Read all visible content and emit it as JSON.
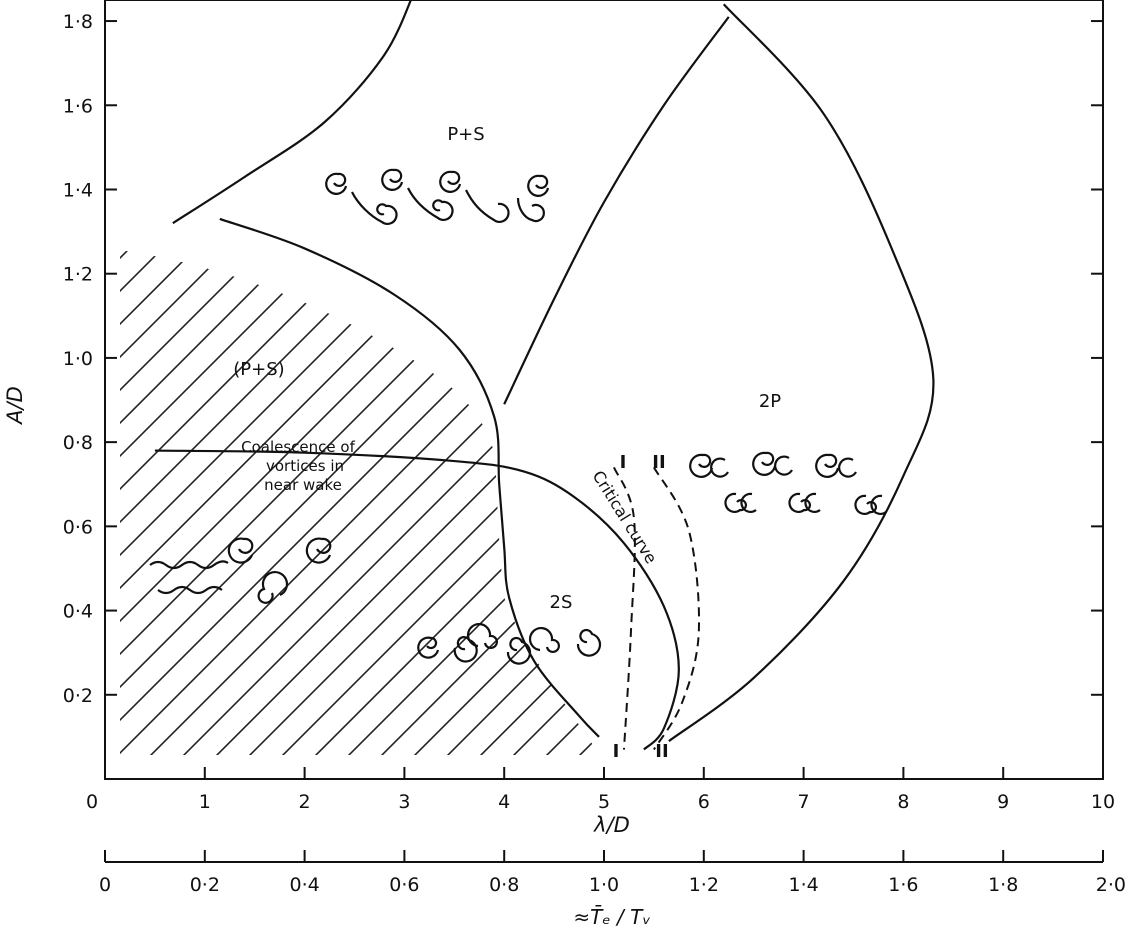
{
  "chart_data": {
    "type": "line",
    "title": "",
    "xlabel": "λ/D",
    "ylabel": "A/D",
    "xlim": [
      0,
      10
    ],
    "ylim": [
      0,
      1.85
    ],
    "x_ticks": [
      "0",
      "1",
      "2",
      "3",
      "4",
      "5",
      "6",
      "7",
      "8",
      "9",
      "10"
    ],
    "y_ticks": [
      "0·2",
      "0·4",
      "0·6",
      "0·8",
      "1·0",
      "1·2",
      "1·4",
      "1·6",
      "1·8"
    ],
    "secondary_x_axis": {
      "label": "≈T̄ₑ / Tᵥ",
      "ticks": [
        "0",
        "0·2",
        "0·4",
        "0·6",
        "0·8",
        "1·0",
        "1·2",
        "1·4",
        "1·6",
        "1·8",
        "2·0"
      ]
    },
    "regions": [
      {
        "name": "P+S",
        "label": "P+S",
        "center": [
          3.6,
          1.57
        ]
      },
      {
        "name": "(P+S)",
        "label": "(P+S)",
        "center": [
          2.2,
          1.0
        ]
      },
      {
        "name": "2P",
        "label": "2P",
        "center": [
          7.5,
          0.92
        ]
      },
      {
        "name": "2S",
        "label": "2S",
        "center": [
          5.0,
          0.39
        ]
      }
    ],
    "series": [
      {
        "values": [
          [
            0.68,
            1.32
          ],
          [
            1.4,
            1.43
          ],
          [
            2.2,
            1.56
          ],
          [
            2.8,
            1.72
          ],
          [
            3.1,
            1.87
          ]
        ]
      },
      {
        "values": [
          [
            1.15,
            1.33
          ],
          [
            2.0,
            1.26
          ],
          [
            2.9,
            1.15
          ],
          [
            3.55,
            1.02
          ],
          [
            3.9,
            0.86
          ],
          [
            3.95,
            0.7
          ],
          [
            4.0,
            0.55
          ],
          [
            4.05,
            0.43
          ],
          [
            4.3,
            0.28
          ],
          [
            4.75,
            0.15
          ],
          [
            4.95,
            0.1
          ]
        ]
      },
      {
        "values": [
          [
            0.5,
            0.78
          ],
          [
            2.0,
            0.775
          ],
          [
            3.5,
            0.755
          ],
          [
            4.2,
            0.73
          ],
          [
            4.7,
            0.67
          ],
          [
            5.2,
            0.56
          ],
          [
            5.6,
            0.41
          ],
          [
            5.75,
            0.26
          ],
          [
            5.6,
            0.12
          ],
          [
            5.4,
            0.07
          ]
        ]
      },
      {
        "values": [
          [
            4.0,
            0.89
          ],
          [
            4.5,
            1.14
          ],
          [
            5.0,
            1.37
          ],
          [
            5.6,
            1.6
          ],
          [
            6.25,
            1.81
          ]
        ]
      },
      {
        "values": [
          [
            6.2,
            1.84
          ],
          [
            7.2,
            1.58
          ],
          [
            7.9,
            1.25
          ],
          [
            8.3,
            0.95
          ],
          [
            8.0,
            0.72
          ],
          [
            7.4,
            0.47
          ],
          [
            6.5,
            0.24
          ],
          [
            5.65,
            0.09
          ]
        ]
      }
    ],
    "dashed_curves": [
      {
        "marker": "I",
        "values": [
          [
            5.1,
            0.74
          ],
          [
            5.3,
            0.62
          ],
          [
            5.27,
            0.35
          ],
          [
            5.2,
            0.07
          ]
        ]
      },
      {
        "marker": "II",
        "values": [
          [
            5.5,
            0.74
          ],
          [
            5.85,
            0.59
          ],
          [
            5.95,
            0.35
          ],
          [
            5.78,
            0.18
          ],
          [
            5.5,
            0.07
          ]
        ]
      }
    ],
    "annotations": [
      {
        "text": "Coalescence of",
        "at": [
          2.5,
          0.83
        ]
      },
      {
        "text": "vortices in",
        "at": [
          2.4,
          0.77
        ]
      },
      {
        "text": "near wake",
        "at": [
          2.3,
          0.71
        ]
      },
      {
        "text": "Critical curve",
        "at": [
          5.8,
          0.6
        ]
      },
      {
        "text": "I",
        "at": [
          5.05,
          0.75
        ]
      },
      {
        "text": "II",
        "at": [
          5.55,
          0.75
        ]
      },
      {
        "text": "I",
        "at": [
          5.05,
          0.07
        ]
      },
      {
        "text": "II",
        "at": [
          5.55,
          0.07
        ]
      }
    ],
    "grid": false,
    "legend": "none"
  }
}
